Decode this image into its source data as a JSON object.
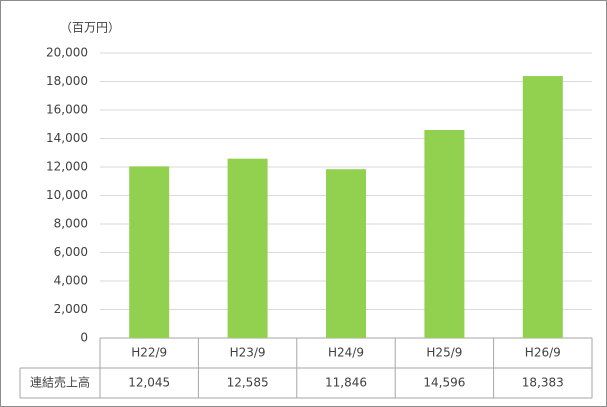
{
  "chart_data": {
    "type": "bar",
    "y_axis_label": "（百万円）",
    "categories": [
      "H22/9",
      "H23/9",
      "H24/9",
      "H25/9",
      "H26/9"
    ],
    "series": [
      {
        "name": "連結売上高",
        "color": "#92d050",
        "values": [
          12045,
          12585,
          11846,
          14596,
          18383
        ],
        "value_labels": [
          "12,045",
          "12,585",
          "11,846",
          "14,596",
          "18,383"
        ]
      }
    ],
    "ylim": [
      0,
      20000
    ],
    "yticks": [
      0,
      {
        "value": 2000,
        "label": "2,000"
      },
      {
        "value": 4000,
        "label": "4,000"
      },
      {
        "value": 6000,
        "label": "6,000"
      },
      {
        "value": 8000,
        "label": "8,000"
      },
      {
        "value": 10000,
        "label": "10,000"
      },
      {
        "value": 12000,
        "label": "12,000"
      },
      {
        "value": 14000,
        "label": "14,000"
      },
      {
        "value": 16000,
        "label": "16,000"
      },
      {
        "value": 18000,
        "label": "18,000"
      },
      {
        "value": 20000,
        "label": "20,000"
      }
    ],
    "grid": true
  }
}
